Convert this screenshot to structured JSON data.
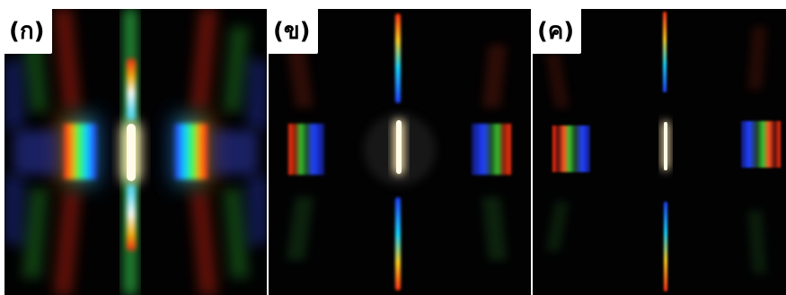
{
  "panels": [
    {
      "label": "(ก)"
    },
    {
      "label": "(ข)"
    },
    {
      "label": "(ค)"
    }
  ],
  "colors": {
    "background": "#020203",
    "separator": "#ffffff",
    "spectrum_red": "#ff2a12",
    "spectrum_orange": "#ff9a12",
    "spectrum_green": "#20c030",
    "spectrum_cyan": "#18d8ff",
    "spectrum_blue": "#2a3cff",
    "central_white": "#fffbe8"
  }
}
